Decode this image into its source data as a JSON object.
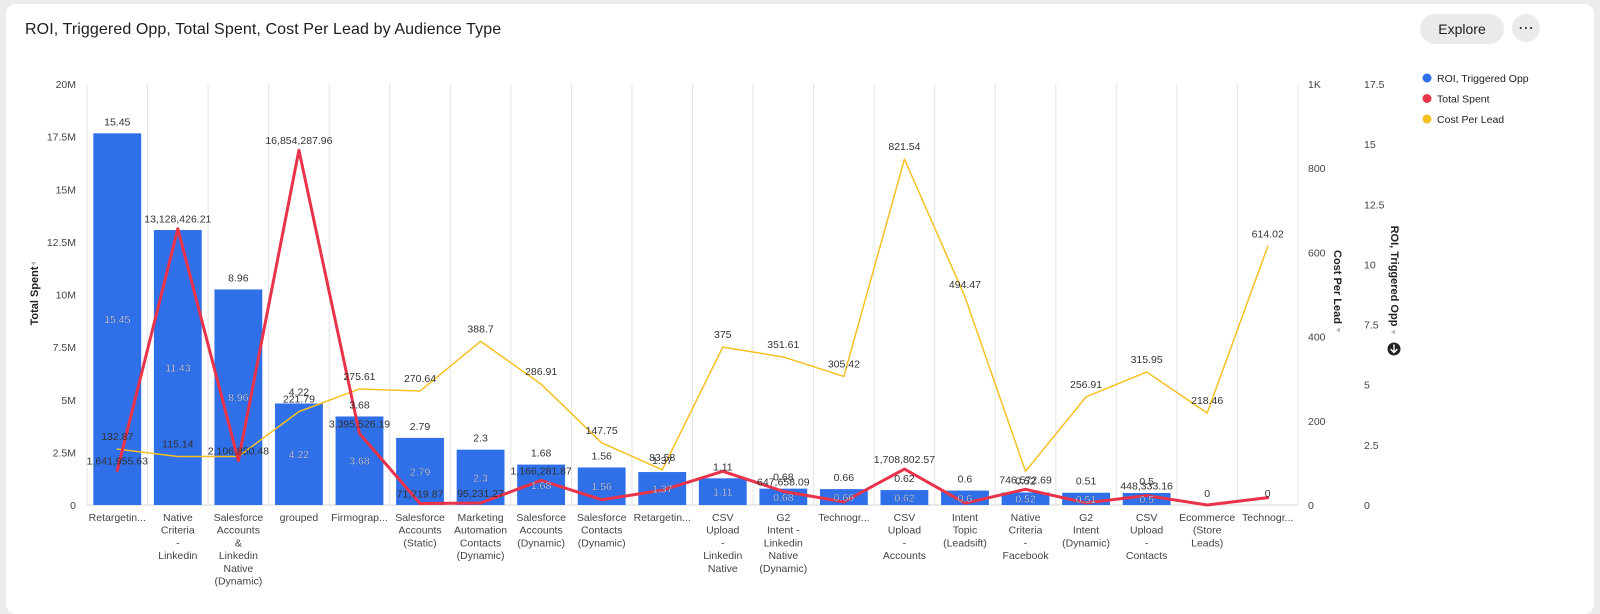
{
  "header": {
    "title": "ROI, Triggered Opp, Total Spent, Cost Per Lead by Audience Type",
    "explore_label": "Explore",
    "more_icon": "more-horizontal-icon",
    "more_glyph": "⋯"
  },
  "chart_data": {
    "type": "bar",
    "categories": [
      "Retargetin...",
      "Native\nCriteria\n-\nLinkedin",
      "Salesforce\nAccounts\n&\nLinkedin\nNative\n(Dynamic)",
      "grouped",
      "Firmograp...",
      "Salesforce\nAccounts\n(Static)",
      "Marketing\nAutomation\nContacts\n(Dynamic)",
      "Salesforce\nAccounts\n(Dynamic)",
      "Salesforce\nContacts\n(Dynamic)",
      "Retargetin...",
      "CSV\nUpload\n-\nLinkedin\nNative",
      "G2\nIntent -\nLinkedin\nNative\n(Dynamic)",
      "Technogr...",
      "CSV\nUpload\n-\nAccounts",
      "Intent\nTopic\n(Leadsift)",
      "Native\nCriteria\n-\nFacebook",
      "G2\nIntent\n(Dynamic)",
      "CSV\nUpload\n-\nContacts",
      "Ecommerce\n(Store\nLeads)",
      "Technogr..."
    ],
    "series": [
      {
        "name": "ROI, Triggered Opp",
        "type": "bar",
        "axis": "roi",
        "color": "#2f6fe8",
        "values": [
          15.45,
          11.43,
          8.96,
          4.22,
          3.68,
          2.79,
          2.3,
          1.68,
          1.56,
          1.37,
          1.11,
          0.68,
          0.66,
          0.62,
          0.6,
          0.52,
          0.51,
          0.5,
          0,
          0
        ],
        "top_labels": [
          "15.45",
          "",
          "8.96",
          "4.22",
          "3.68",
          "2.79",
          "2.3",
          "1.68",
          "1.56",
          "1.37",
          "1.11",
          "0.68",
          "0.66",
          "0.62",
          "0.6",
          "0.52",
          "0.51",
          "0.5",
          "0",
          "0"
        ],
        "inside_labels": [
          "15.45",
          "11.43",
          "8.96",
          "4.22",
          "3.68",
          "2.79",
          "2.3",
          "1.68",
          "1.56",
          "1.37",
          "1.11",
          "0.68",
          "0.66",
          "0.62",
          "0.6",
          "0.52",
          "0.51",
          "0.5",
          "",
          ""
        ]
      },
      {
        "name": "Total Spent",
        "type": "line",
        "axis": "spent",
        "color": "#e8334a",
        "values": [
          1641955.63,
          13128426.21,
          2106850.48,
          16854287.96,
          3395526.19,
          71719.87,
          95231.27,
          1166281.87,
          250000,
          700000,
          1600000,
          647658.09,
          150000,
          1708802.57,
          90000,
          746572.69,
          100000,
          448333.16,
          0,
          350000
        ],
        "labels": [
          "1,641,955.63",
          "13,128,426.21",
          "2,106,850.48",
          "16,854,287.96",
          "3,395,526.19",
          "71,719.87",
          "95,231.27",
          "1,166,281.87",
          "",
          "",
          "",
          "647,658.09",
          "",
          "1,708,802.57",
          "",
          "746,572.69",
          "",
          "448,333.16",
          "",
          ""
        ]
      },
      {
        "name": "Cost Per Lead",
        "type": "line",
        "axis": "cpl",
        "color": "#f6c022",
        "values": [
          132.87,
          115.14,
          115.14,
          221.79,
          275.61,
          270.64,
          388.7,
          286.91,
          147.75,
          83.58,
          375,
          351.61,
          305.42,
          821.54,
          494.47,
          80,
          256.91,
          315.95,
          218.46,
          614.02
        ],
        "labels": [
          "132.87",
          "115.14",
          "",
          "221.79",
          "275.61",
          "270.64",
          "388.7",
          "286.91",
          "147.75",
          "83.58",
          "375",
          "351.61",
          "305.42",
          "821.54",
          "494.47",
          "",
          "256.91",
          "315.95",
          "218.46",
          "614.02"
        ]
      }
    ],
    "axes": {
      "spent": {
        "label": "Total Spent",
        "min": 0,
        "max": 20000000,
        "ticks": [
          "0",
          "2.5M",
          "5M",
          "7.5M",
          "10M",
          "12.5M",
          "15M",
          "17.5M",
          "20M"
        ]
      },
      "cpl": {
        "label": "Cost Per Lead",
        "min": 0,
        "max": 1000,
        "ticks": [
          "0",
          "200",
          "400",
          "600",
          "800",
          "1K"
        ]
      },
      "roi": {
        "label": "ROI, Triggered Opp",
        "min": 0,
        "max": 17.5,
        "ticks": [
          "0",
          "2.5",
          "5",
          "7.5",
          "10",
          "12.5",
          "15",
          "17.5"
        ]
      }
    },
    "legend": {
      "position": "top-right",
      "items": [
        {
          "name": "ROI, Triggered Opp",
          "color": "#2f6fe8"
        },
        {
          "name": "Total Spent",
          "color": "#e8334a"
        },
        {
          "name": "Cost Per Lead",
          "color": "#f6c022"
        }
      ]
    },
    "grid": {
      "vertical": true,
      "horizontal": false
    },
    "sort_icon": "arrow-down-circle-icon"
  }
}
